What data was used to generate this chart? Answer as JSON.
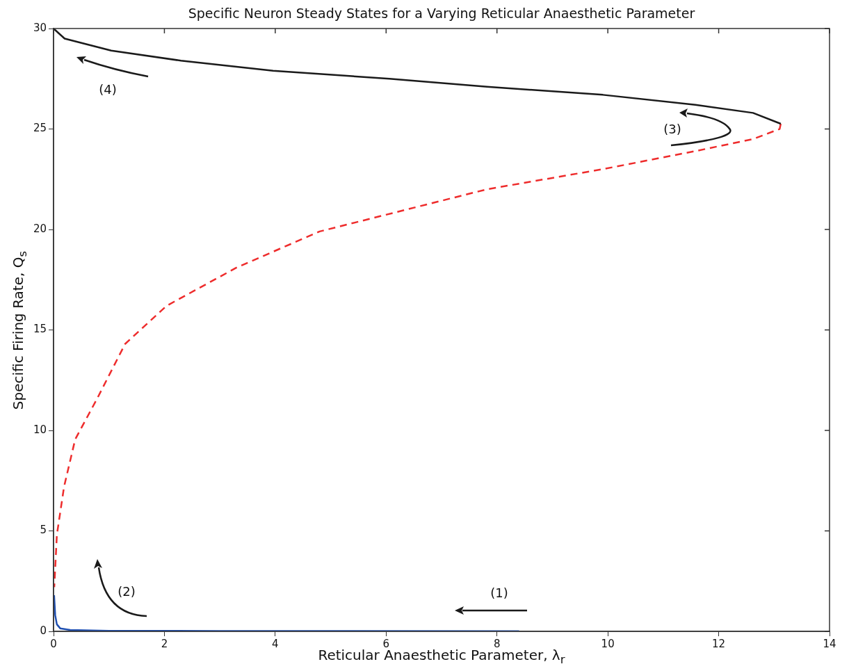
{
  "chart_data": {
    "type": "line",
    "title": "Specific Neuron Steady States for a Varying Reticular Anaesthetic Parameter",
    "xlabel": "Reticular Anaesthetic Parameter, λ$_{r}$",
    "ylabel": "Specific Firing Rate, Q$_{s}$",
    "series": [
      {
        "color": "#1a1a1a",
        "line_style": "solid",
        "x": [
          0,
          0.2,
          1.04,
          2.3,
          3.96,
          6.06,
          7.82,
          9.91,
          11.58,
          12.62,
          13.12
        ],
        "values": [
          30,
          29.5,
          28.9,
          28.4,
          27.9,
          27.5,
          27.1,
          26.7,
          26.2,
          25.8,
          25.26
        ]
      },
      {
        "color": "#ee2c2c",
        "line_style": "dashed",
        "x": [
          13.12,
          13.1,
          12.62,
          11.58,
          9.91,
          7.82,
          4.8,
          3.3,
          2.04,
          1.29,
          0.79,
          0.39,
          0.19,
          0.06,
          0.013
        ],
        "values": [
          25.26,
          25,
          24.5,
          23.9,
          23,
          22,
          19.9,
          18.1,
          16.2,
          14.3,
          11.6,
          9.55,
          7.2,
          4.8,
          2.2
        ]
      },
      {
        "color": "#1f4fb0",
        "line_style": "solid",
        "x": [
          0.01,
          0.03,
          0.06,
          0.12,
          0.3,
          1,
          3,
          8.4
        ],
        "values": [
          1.8,
          0.8,
          0.35,
          0.15,
          0.07,
          0.03,
          0.02,
          0.01
        ]
      }
    ],
    "annotations": [
      "(1)",
      "(2)",
      "(3)",
      "(4)"
    ],
    "xlim": [
      0,
      14
    ],
    "xticks": [
      0,
      2,
      4,
      6,
      8,
      10,
      12,
      14
    ],
    "ylim": [
      0,
      30
    ],
    "yticks": [
      0,
      5,
      10,
      15,
      20,
      25,
      30
    ],
    "grid": false,
    "legend": false,
    "marker": "none"
  }
}
